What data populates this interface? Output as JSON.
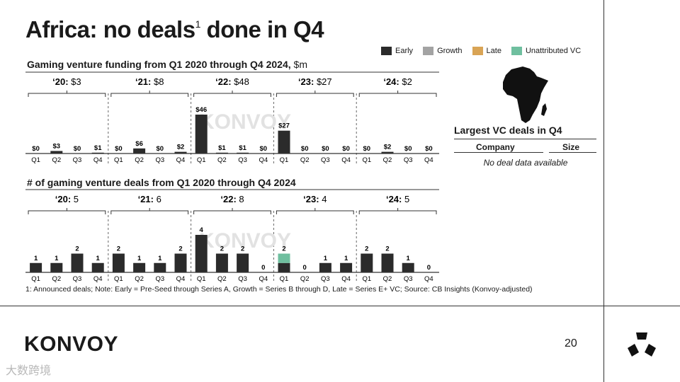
{
  "title": "Africa: no deals",
  "title_sup": "1",
  "title_rest": " done in Q4",
  "legend": [
    {
      "label": "Early",
      "color": "#2b2b2b"
    },
    {
      "label": "Growth",
      "color": "#a3a3a3"
    },
    {
      "label": "Late",
      "color": "#d9a455"
    },
    {
      "label": "Unattributed VC",
      "color": "#6fbf9f"
    }
  ],
  "chart_data": [
    {
      "type": "bar",
      "title": "Gaming venture funding from Q1 2020 through Q4 2024,",
      "unit": "$m",
      "categories": [
        "Q1",
        "Q2",
        "Q3",
        "Q4",
        "Q1",
        "Q2",
        "Q3",
        "Q4",
        "Q1",
        "Q2",
        "Q3",
        "Q4",
        "Q1",
        "Q2",
        "Q3",
        "Q4",
        "Q1",
        "Q2",
        "Q3",
        "Q4"
      ],
      "year_labels": [
        {
          "year": "‘20:",
          "total": "$3"
        },
        {
          "year": "‘21:",
          "total": "$8"
        },
        {
          "year": "‘22:",
          "total": "$48"
        },
        {
          "year": "‘23:",
          "total": "$27"
        },
        {
          "year": "‘24:",
          "total": "$2"
        }
      ],
      "series": [
        {
          "name": "Early",
          "values": [
            0,
            3,
            0,
            1,
            0,
            6,
            0,
            2,
            46,
            1,
            1,
            0,
            27,
            0,
            0,
            0,
            0,
            2,
            0,
            0
          ]
        }
      ],
      "data_labels": [
        "$0",
        "$3",
        "$0",
        "$1",
        "$0",
        "$6",
        "$0",
        "$2",
        "$46",
        "$1",
        "$1",
        "$0",
        "$27",
        "$0",
        "$0",
        "$0",
        "$0",
        "$2",
        "$0",
        "$0"
      ],
      "ylim": [
        0,
        46
      ]
    },
    {
      "type": "bar",
      "title": "# of gaming venture deals from Q1 2020 through Q4 2024",
      "unit": "",
      "categories": [
        "Q1",
        "Q2",
        "Q3",
        "Q4",
        "Q1",
        "Q2",
        "Q3",
        "Q4",
        "Q1",
        "Q2",
        "Q3",
        "Q4",
        "Q1",
        "Q2",
        "Q3",
        "Q4",
        "Q1",
        "Q2",
        "Q3",
        "Q4"
      ],
      "year_labels": [
        {
          "year": "‘20:",
          "total": "5"
        },
        {
          "year": "‘21:",
          "total": "6"
        },
        {
          "year": "‘22:",
          "total": "8"
        },
        {
          "year": "‘23:",
          "total": "4"
        },
        {
          "year": "‘24:",
          "total": "5"
        }
      ],
      "series": [
        {
          "name": "Early",
          "values": [
            1,
            1,
            2,
            1,
            2,
            1,
            1,
            2,
            4,
            2,
            2,
            0,
            1,
            0,
            1,
            1,
            2,
            2,
            1,
            0
          ]
        },
        {
          "name": "Unattributed VC",
          "values": [
            0,
            0,
            0,
            0,
            0,
            0,
            0,
            0,
            0,
            0,
            0,
            0,
            1,
            0,
            0,
            0,
            0,
            0,
            0,
            0
          ]
        }
      ],
      "data_labels": [
        "1",
        "1",
        "2",
        "1",
        "2",
        "1",
        "1",
        "2",
        "4",
        "2",
        "2",
        "0",
        "2",
        "0",
        "1",
        "1",
        "2",
        "2",
        "1",
        "0"
      ],
      "ylim": [
        0,
        4
      ]
    }
  ],
  "watermark": "KONVOY",
  "right_panel": {
    "title": "Largest VC deals in Q4",
    "col_company": "Company",
    "col_size": "Size",
    "empty": "No deal data available"
  },
  "footnote": "1: Announced deals; Note: Early = Pre-Seed through Series A, Growth = Series B through D, Late = Series E+ VC; Source: CB Insights (Konvoy-adjusted)",
  "brand": "KONVOY",
  "page_number": "20",
  "corner_watermark": "大数跨境"
}
